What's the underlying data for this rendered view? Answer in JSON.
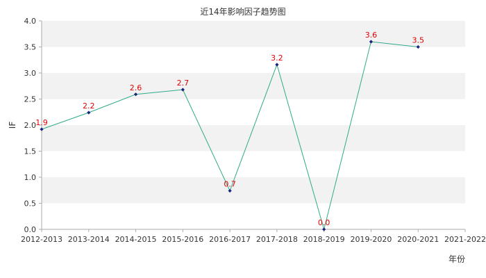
{
  "chart_data": {
    "type": "line",
    "title": "近14年影响因子趋势图",
    "xlabel": "年份",
    "ylabel": "IF",
    "categories": [
      "2012-2013",
      "2013-2014",
      "2014-2015",
      "2015-2016",
      "2016-2017",
      "2017-2018",
      "2018-2019",
      "2019-2020",
      "2020-2021",
      "2021-2022"
    ],
    "series": [
      {
        "values": [
          1.92,
          2.24,
          2.59,
          2.68,
          0.74,
          3.16,
          0.0,
          3.6,
          3.5,
          null
        ],
        "labels": [
          "1.9",
          "2.2",
          "2.6",
          "2.7",
          "0.7",
          "3.2",
          "0.0",
          "3.6",
          "3.5",
          ""
        ]
      }
    ],
    "ylim": [
      0,
      4
    ],
    "yticks": [
      "0.0",
      "0.5",
      "1.0",
      "1.5",
      "2.0",
      "2.5",
      "3.0",
      "3.5",
      "4.0"
    ],
    "grid": "horizontal bands",
    "colors": {
      "line": "#2eaa8a",
      "marker": "#1a237e",
      "label": "#e00000",
      "band": "#f2f2f2",
      "axis": "#aaaaaa"
    }
  }
}
